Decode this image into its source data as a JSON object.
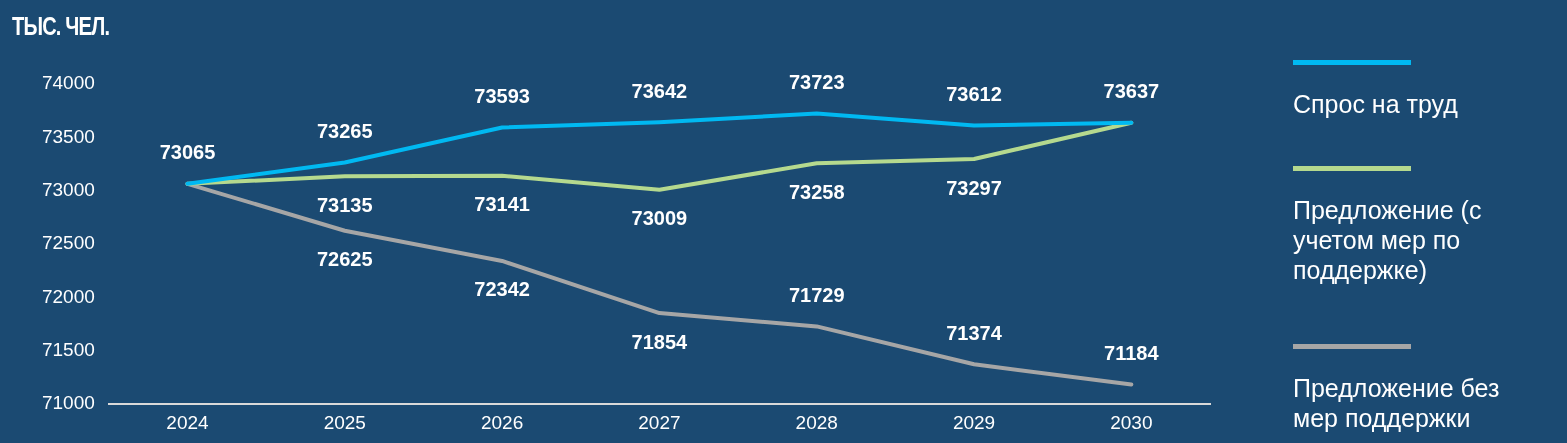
{
  "chart_data": {
    "type": "line",
    "ylabel": "ТЫС. ЧЕЛ.",
    "categories": [
      "2024",
      "2025",
      "2026",
      "2027",
      "2028",
      "2029",
      "2030"
    ],
    "series": [
      {
        "name": "Спрос на труд",
        "color": "#00b9f2",
        "values": [
          73065,
          73265,
          73593,
          73642,
          73723,
          73612,
          73637
        ],
        "value_labels": [
          "73065",
          "73265",
          "73593",
          "73642",
          "73723",
          "73612",
          "73637"
        ]
      },
      {
        "name": "Предложение (с учетом мер по поддержке)",
        "color": "#b5d98e",
        "values": [
          73065,
          73135,
          73141,
          73009,
          73258,
          73297,
          73637
        ],
        "value_labels": [
          null,
          "73135",
          "73141",
          "73009",
          "73258",
          "73297",
          null
        ]
      },
      {
        "name": "Предложение без мер поддержки",
        "color": "#a6a6a6",
        "values": [
          73065,
          72625,
          72342,
          71854,
          71729,
          71374,
          71184
        ],
        "value_labels": [
          null,
          "72625",
          "72342",
          "71854",
          "71729",
          "71374",
          "71184"
        ]
      }
    ],
    "ylim": [
      71000,
      74000
    ],
    "yticks": [
      71000,
      71500,
      72000,
      72500,
      73000,
      73500,
      74000
    ],
    "grid": false,
    "legend": "right"
  }
}
